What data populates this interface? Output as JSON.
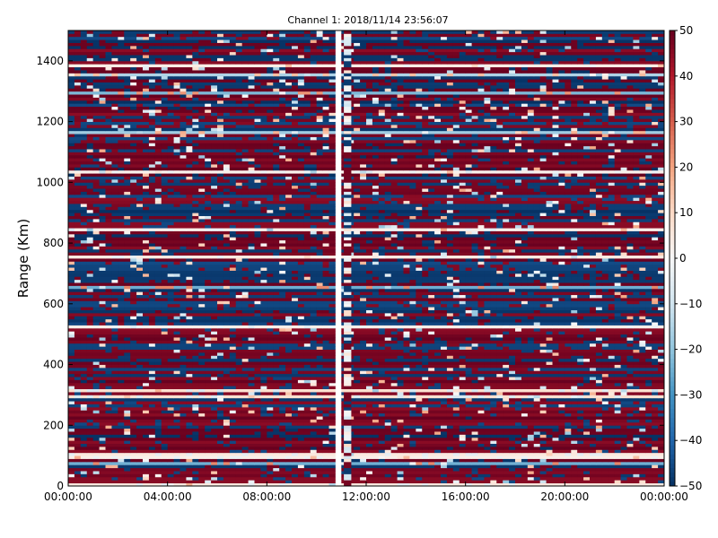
{
  "chart_data": {
    "type": "heatmap",
    "title": "Channel 1: 2018/11/14 23:56:07",
    "xlabel": "",
    "ylabel": "Range (Km)",
    "x_ticks": [
      "00:00:00",
      "04:00:00",
      "08:00:00",
      "12:00:00",
      "16:00:00",
      "20:00:00",
      "00:00:00"
    ],
    "xlim": [
      "00:00:00",
      "24:00:00"
    ],
    "ylim": [
      0,
      1500
    ],
    "y_ticks": [
      0,
      200,
      400,
      600,
      800,
      1000,
      1200,
      1400
    ],
    "colorbar": {
      "range": [
        -50,
        50
      ],
      "ticks": [
        50,
        40,
        30,
        20,
        10,
        0,
        -10,
        -20,
        -30,
        -40,
        -50
      ],
      "colormap": "RdBu_r",
      "colors": [
        "#053061",
        "#2166ac",
        "#4393c3",
        "#92c5de",
        "#d1e5f0",
        "#f7f7f7",
        "#fddbc7",
        "#f4a582",
        "#d6604d",
        "#b2182b",
        "#67001f"
      ]
    },
    "data_gap": {
      "start": "10:42:00",
      "end": "11:06:00"
    },
    "grid": false,
    "legend": "none"
  }
}
